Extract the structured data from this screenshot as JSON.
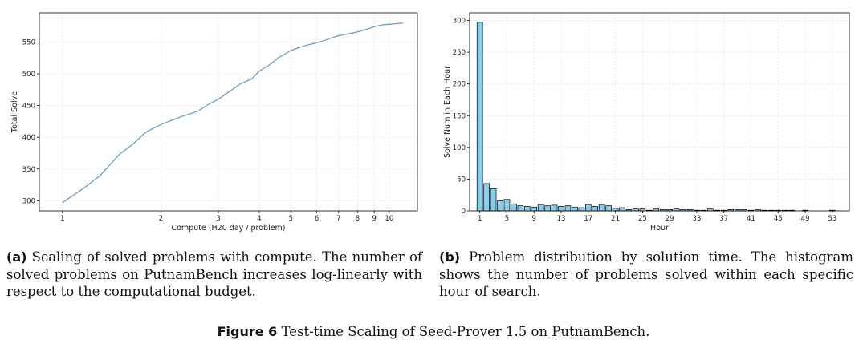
{
  "chart_data": [
    {
      "type": "line",
      "xlabel": "Compute (H20 day / problem)",
      "ylabel": "Total Solve",
      "xscale": "log",
      "xlim": [
        0.85,
        12.2
      ],
      "ylim": [
        284,
        596
      ],
      "grid": true,
      "color": "#6a9ec5",
      "x_ticks": [
        1,
        2,
        3,
        4,
        5,
        6,
        7,
        8,
        9,
        10
      ],
      "x_tick_labels": [
        "1",
        "2",
        "3",
        "4",
        "5",
        "6",
        "7",
        "8",
        "9",
        "10"
      ],
      "y_ticks": [
        300,
        350,
        400,
        450,
        500,
        550
      ],
      "y_tick_labels": [
        "300",
        "350",
        "400",
        "450",
        "500",
        "550"
      ],
      "x": [
        1.0,
        1.15,
        1.3,
        1.5,
        1.65,
        1.8,
        2.0,
        2.3,
        2.6,
        2.8,
        3.0,
        3.2,
        3.5,
        3.8,
        4.0,
        4.3,
        4.6,
        4.8,
        5.0,
        5.3,
        5.5,
        5.8,
        6.0,
        6.3,
        6.6,
        7.0,
        7.5,
        8.0,
        8.5,
        9.0,
        9.5,
        10.0,
        10.5,
        11.0
      ],
      "y": [
        297,
        318,
        339,
        374,
        390,
        408,
        420,
        432,
        441,
        452,
        460,
        470,
        484,
        492,
        504,
        514,
        526,
        531,
        537,
        541,
        544,
        547,
        549,
        552,
        556,
        560,
        563,
        566,
        570,
        574,
        577,
        578,
        579,
        580
      ]
    },
    {
      "type": "bar",
      "xlabel": "Hour",
      "ylabel": "Solve Num in Each Hour",
      "xlim": [
        -0.5,
        55.5
      ],
      "ylim": [
        0,
        312
      ],
      "grid": true,
      "color": "#87ceeb",
      "edge_color": "#000000",
      "x_ticks": [
        1,
        5,
        9,
        13,
        17,
        21,
        25,
        29,
        33,
        37,
        41,
        45,
        49,
        53
      ],
      "x_tick_labels": [
        "1",
        "5",
        "9",
        "13",
        "17",
        "21",
        "25",
        "29",
        "33",
        "37",
        "41",
        "45",
        "49",
        "53"
      ],
      "y_ticks": [
        0,
        50,
        100,
        150,
        200,
        250,
        300
      ],
      "y_tick_labels": [
        "0",
        "50",
        "100",
        "150",
        "200",
        "250",
        "300"
      ],
      "categories": [
        1,
        2,
        3,
        4,
        5,
        6,
        7,
        8,
        9,
        10,
        11,
        12,
        13,
        14,
        15,
        16,
        17,
        18,
        19,
        20,
        21,
        22,
        23,
        24,
        25,
        26,
        27,
        28,
        29,
        30,
        31,
        32,
        33,
        34,
        35,
        36,
        37,
        38,
        39,
        40,
        41,
        42,
        43,
        44,
        45,
        46,
        47,
        48,
        49,
        50,
        51,
        52,
        53
      ],
      "values": [
        297,
        43,
        35,
        16,
        18,
        11,
        8,
        7,
        6,
        10,
        8,
        9,
        7,
        8,
        6,
        5,
        10,
        7,
        10,
        8,
        4,
        5,
        2,
        3,
        3,
        1,
        3,
        2,
        2,
        3,
        2,
        2,
        1,
        1,
        3,
        1,
        1,
        2,
        2,
        2,
        1,
        2,
        1,
        1,
        1,
        1,
        1,
        0,
        1,
        0,
        0,
        0,
        1
      ]
    }
  ],
  "captions": {
    "a_tag": "(a)",
    "a_text": "Scaling of solved problems with compute. The number of solved problems on PutnamBench increases log-linearly with respect to the computational budget.",
    "b_tag": "(b)",
    "b_text": "Problem distribution by solution time. The histogram shows the number of problems solved within each specific hour of search.",
    "figure_tag": "Figure 6",
    "figure_text": "Test-time Scaling of Seed-Prover 1.5 on PutnamBench."
  }
}
